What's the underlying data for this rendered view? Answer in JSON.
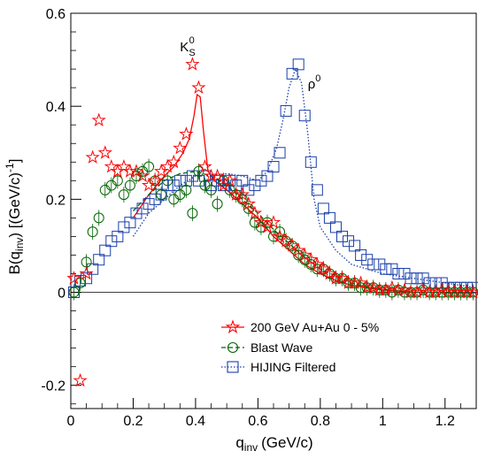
{
  "chart_data": {
    "type": "scatter",
    "xlabel": "q",
    "xlabel_sub": "inv",
    "xlabel_unit": "(GeV/c)",
    "ylabel": "B(q",
    "ylabel_sub": "inv",
    "ylabel_unit": ") [(GeV/c)",
    "ylabel_sup": "-1",
    "ylabel_end": "]",
    "xlim": [
      0,
      1.3
    ],
    "ylim": [
      -0.25,
      0.6
    ],
    "xticks": [
      "0",
      "0.2",
      "0.4",
      "0.6",
      "0.8",
      "1",
      "1.2"
    ],
    "yticks": [
      "-0.2",
      "0",
      "0.2",
      "0.4",
      "0.6"
    ],
    "annotations": [
      {
        "text": "K",
        "sub": "S",
        "sup": "0",
        "x": 0.35,
        "y": 0.53
      },
      {
        "text": "ρ",
        "sup": "0",
        "x": 0.76,
        "y": 0.45
      }
    ],
    "legend_position": "bottom-right",
    "series": [
      {
        "name": "200 GeV Au+Au 0 - 5%",
        "marker": "star",
        "color": "#ff0000",
        "x": [
          0.01,
          0.03,
          0.05,
          0.07,
          0.09,
          0.11,
          0.13,
          0.15,
          0.17,
          0.19,
          0.21,
          0.23,
          0.25,
          0.27,
          0.29,
          0.31,
          0.33,
          0.35,
          0.37,
          0.39,
          0.41,
          0.43,
          0.45,
          0.47,
          0.49,
          0.51,
          0.53,
          0.55,
          0.57,
          0.59,
          0.61,
          0.63,
          0.65,
          0.67,
          0.69,
          0.71,
          0.73,
          0.75,
          0.77,
          0.79,
          0.81,
          0.83,
          0.85,
          0.87,
          0.89,
          0.91,
          0.93,
          0.95,
          0.97,
          0.99,
          1.01,
          1.03,
          1.05,
          1.07,
          1.09,
          1.11,
          1.13,
          1.15,
          1.17,
          1.19,
          1.21,
          1.23,
          1.25,
          1.27,
          1.29
        ],
        "y": [
          0.03,
          -0.19,
          0.04,
          0.29,
          0.37,
          0.3,
          0.27,
          0.26,
          0.27,
          0.26,
          0.26,
          0.25,
          0.23,
          0.24,
          0.26,
          0.27,
          0.28,
          0.31,
          0.34,
          0.49,
          0.44,
          0.27,
          0.25,
          0.25,
          0.23,
          0.24,
          0.21,
          0.21,
          0.19,
          0.17,
          0.15,
          0.14,
          0.15,
          0.12,
          0.11,
          0.1,
          0.09,
          0.08,
          0.07,
          0.06,
          0.05,
          0.04,
          0.03,
          0.03,
          0.02,
          0.02,
          0.02,
          0.01,
          0.01,
          0.005,
          0.005,
          0.01,
          0.005,
          0.005,
          0.0,
          0.0,
          0.005,
          0.0,
          0.0,
          0.005,
          0.0,
          0.0,
          0.0,
          0.0,
          0.0
        ]
      },
      {
        "name": "Blast Wave",
        "marker": "circle",
        "color": "#006400",
        "x": [
          0.01,
          0.03,
          0.05,
          0.07,
          0.09,
          0.11,
          0.13,
          0.15,
          0.17,
          0.19,
          0.21,
          0.23,
          0.25,
          0.27,
          0.29,
          0.31,
          0.33,
          0.35,
          0.37,
          0.39,
          0.41,
          0.43,
          0.45,
          0.47,
          0.49,
          0.51,
          0.53,
          0.55,
          0.57,
          0.59,
          0.61,
          0.63,
          0.65,
          0.67,
          0.69,
          0.71,
          0.73,
          0.75,
          0.77,
          0.79,
          0.81,
          0.83,
          0.85,
          0.87,
          0.89,
          0.91,
          0.93,
          0.95,
          0.97,
          0.99,
          1.01,
          1.03,
          1.05,
          1.07,
          1.09,
          1.11,
          1.13,
          1.15,
          1.17,
          1.19,
          1.21,
          1.23,
          1.25,
          1.27,
          1.29
        ],
        "y": [
          0.0,
          0.02,
          0.065,
          0.13,
          0.16,
          0.22,
          0.23,
          0.24,
          0.21,
          0.23,
          0.25,
          0.26,
          0.27,
          0.24,
          0.21,
          0.24,
          0.2,
          0.21,
          0.22,
          0.17,
          0.26,
          0.23,
          0.22,
          0.19,
          0.24,
          0.22,
          0.21,
          0.2,
          0.18,
          0.15,
          0.14,
          0.15,
          0.12,
          0.13,
          0.11,
          0.1,
          0.08,
          0.07,
          0.06,
          0.05,
          0.05,
          0.04,
          0.03,
          0.03,
          0.02,
          0.02,
          0.01,
          0.01,
          0.01,
          0.005,
          0.005,
          0.0,
          0.005,
          0.0,
          0.0,
          0.0,
          0.005,
          0.0,
          0.0,
          0.0,
          0.0,
          0.0,
          0.0,
          0.0,
          0.0
        ]
      },
      {
        "name": "HIJING Filtered",
        "marker": "square",
        "color": "#1a3faa",
        "x": [
          0.01,
          0.03,
          0.05,
          0.07,
          0.09,
          0.11,
          0.13,
          0.15,
          0.17,
          0.19,
          0.21,
          0.23,
          0.25,
          0.27,
          0.29,
          0.31,
          0.33,
          0.35,
          0.37,
          0.39,
          0.41,
          0.43,
          0.45,
          0.47,
          0.49,
          0.51,
          0.53,
          0.55,
          0.57,
          0.59,
          0.61,
          0.63,
          0.65,
          0.67,
          0.69,
          0.71,
          0.73,
          0.75,
          0.77,
          0.79,
          0.81,
          0.83,
          0.85,
          0.87,
          0.89,
          0.91,
          0.93,
          0.95,
          0.97,
          0.99,
          1.01,
          1.03,
          1.05,
          1.07,
          1.09,
          1.11,
          1.13,
          1.15,
          1.17,
          1.19,
          1.21,
          1.23,
          1.25,
          1.27,
          1.29
        ],
        "y": [
          0.0,
          0.025,
          0.03,
          0.05,
          0.07,
          0.09,
          0.11,
          0.12,
          0.14,
          0.15,
          0.17,
          0.18,
          0.19,
          0.2,
          0.21,
          0.23,
          0.23,
          0.24,
          0.24,
          0.25,
          0.24,
          0.25,
          0.23,
          0.24,
          0.23,
          0.24,
          0.23,
          0.24,
          0.22,
          0.23,
          0.24,
          0.25,
          0.27,
          0.3,
          0.39,
          0.47,
          0.49,
          0.38,
          0.28,
          0.22,
          0.18,
          0.16,
          0.14,
          0.12,
          0.11,
          0.1,
          0.08,
          0.07,
          0.06,
          0.06,
          0.05,
          0.05,
          0.04,
          0.04,
          0.03,
          0.03,
          0.03,
          0.02,
          0.02,
          0.02,
          0.01,
          0.01,
          0.01,
          0.01,
          0.01
        ]
      }
    ],
    "curves": [
      {
        "series": "200 GeV Au+Au 0 - 5%",
        "style": "solid",
        "x": [
          0.2,
          0.25,
          0.3,
          0.33,
          0.36,
          0.38,
          0.395,
          0.405,
          0.415,
          0.425,
          0.44,
          0.46,
          0.5,
          0.55,
          0.6,
          0.65,
          0.7,
          0.75,
          0.8,
          0.85,
          0.9,
          0.95,
          1.0,
          1.05,
          1.1
        ],
        "y": [
          0.16,
          0.21,
          0.25,
          0.27,
          0.3,
          0.33,
          0.38,
          0.425,
          0.42,
          0.35,
          0.26,
          0.24,
          0.22,
          0.19,
          0.16,
          0.12,
          0.09,
          0.06,
          0.04,
          0.025,
          0.015,
          0.01,
          0.005,
          0.003,
          0.0
        ]
      },
      {
        "series": "Blast Wave",
        "style": "dashed",
        "x": [
          0.2,
          0.25,
          0.3,
          0.35,
          0.4,
          0.45,
          0.5,
          0.55,
          0.6,
          0.65,
          0.7,
          0.75,
          0.8,
          0.85,
          0.9,
          0.95,
          1.0,
          1.05,
          1.1
        ],
        "y": [
          0.175,
          0.21,
          0.24,
          0.255,
          0.26,
          0.25,
          0.23,
          0.2,
          0.17,
          0.135,
          0.105,
          0.075,
          0.05,
          0.035,
          0.02,
          0.012,
          0.007,
          0.003,
          0.0
        ]
      },
      {
        "series": "HIJING Filtered",
        "style": "dotted",
        "x": [
          0.2,
          0.25,
          0.3,
          0.35,
          0.4,
          0.45,
          0.5,
          0.55,
          0.6,
          0.63,
          0.66,
          0.68,
          0.7,
          0.72,
          0.74,
          0.76,
          0.78,
          0.8,
          0.85,
          0.9,
          0.95,
          1.0,
          1.1,
          1.2,
          1.3
        ],
        "y": [
          0.12,
          0.17,
          0.2,
          0.23,
          0.25,
          0.25,
          0.255,
          0.25,
          0.24,
          0.26,
          0.31,
          0.37,
          0.44,
          0.48,
          0.45,
          0.34,
          0.2,
          0.14,
          0.09,
          0.06,
          0.05,
          0.04,
          0.03,
          0.02,
          0.01
        ]
      }
    ]
  }
}
